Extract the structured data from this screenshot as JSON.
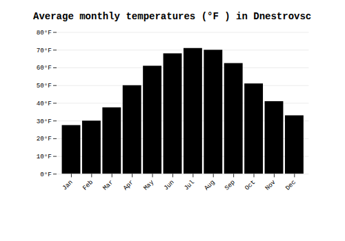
{
  "chart_data": {
    "type": "bar",
    "title": "Average monthly temperatures (°F ) in Dnestrovsc",
    "categories": [
      "Jan",
      "Feb",
      "Mar",
      "Apr",
      "May",
      "Jun",
      "Jul",
      "Aug",
      "Sep",
      "Oct",
      "Nov",
      "Dec"
    ],
    "values": [
      27.5,
      30.0,
      37.5,
      50.0,
      61.0,
      68.0,
      71.0,
      70.0,
      62.5,
      51.0,
      41.0,
      33.0
    ],
    "ylim": [
      0,
      80
    ],
    "yticks": [
      {
        "value": 0,
        "label": "0°F"
      },
      {
        "value": 10,
        "label": "10°F"
      },
      {
        "value": 20,
        "label": "20°F"
      },
      {
        "value": 30,
        "label": "30°F"
      },
      {
        "value": 40,
        "label": "40°F"
      },
      {
        "value": 50,
        "label": "50°F"
      },
      {
        "value": 60,
        "label": "60°F"
      },
      {
        "value": 70,
        "label": "70°F"
      },
      {
        "value": 80,
        "label": "80°F"
      }
    ],
    "grid": true
  }
}
